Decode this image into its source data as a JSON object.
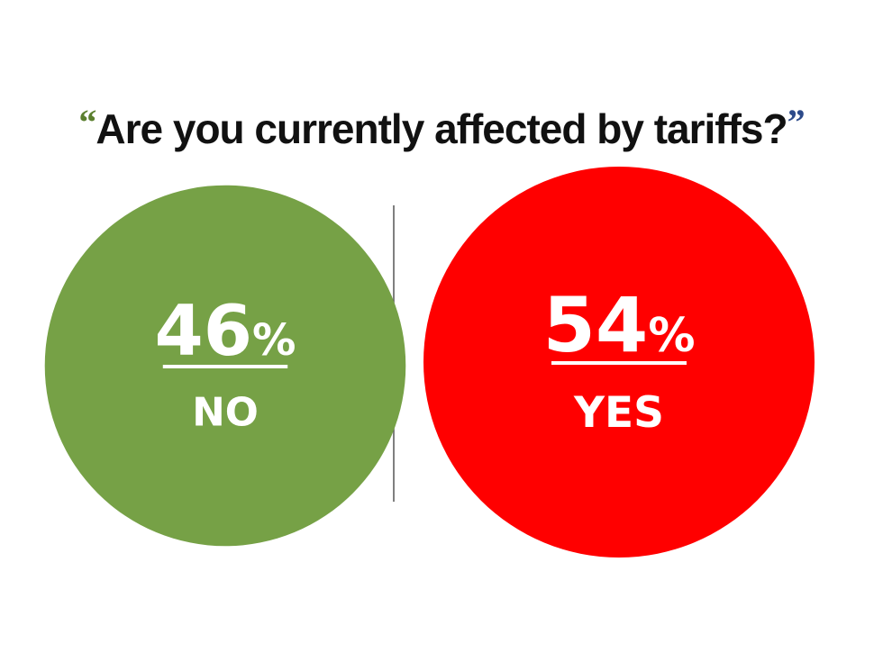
{
  "title": {
    "open_quote": "“",
    "text": "Are you currently affected by tariffs?",
    "close_quote": "”",
    "quote_colors": {
      "open": "#5b7f2e",
      "close": "#2c4a8a"
    }
  },
  "chart_data": {
    "type": "bubble",
    "title": "Are you currently affected by tariffs?",
    "categories": [
      "NO",
      "YES"
    ],
    "values": [
      46,
      54
    ],
    "unit": "%",
    "colors": [
      "#76a146",
      "#ff0000"
    ],
    "divider": true
  }
}
